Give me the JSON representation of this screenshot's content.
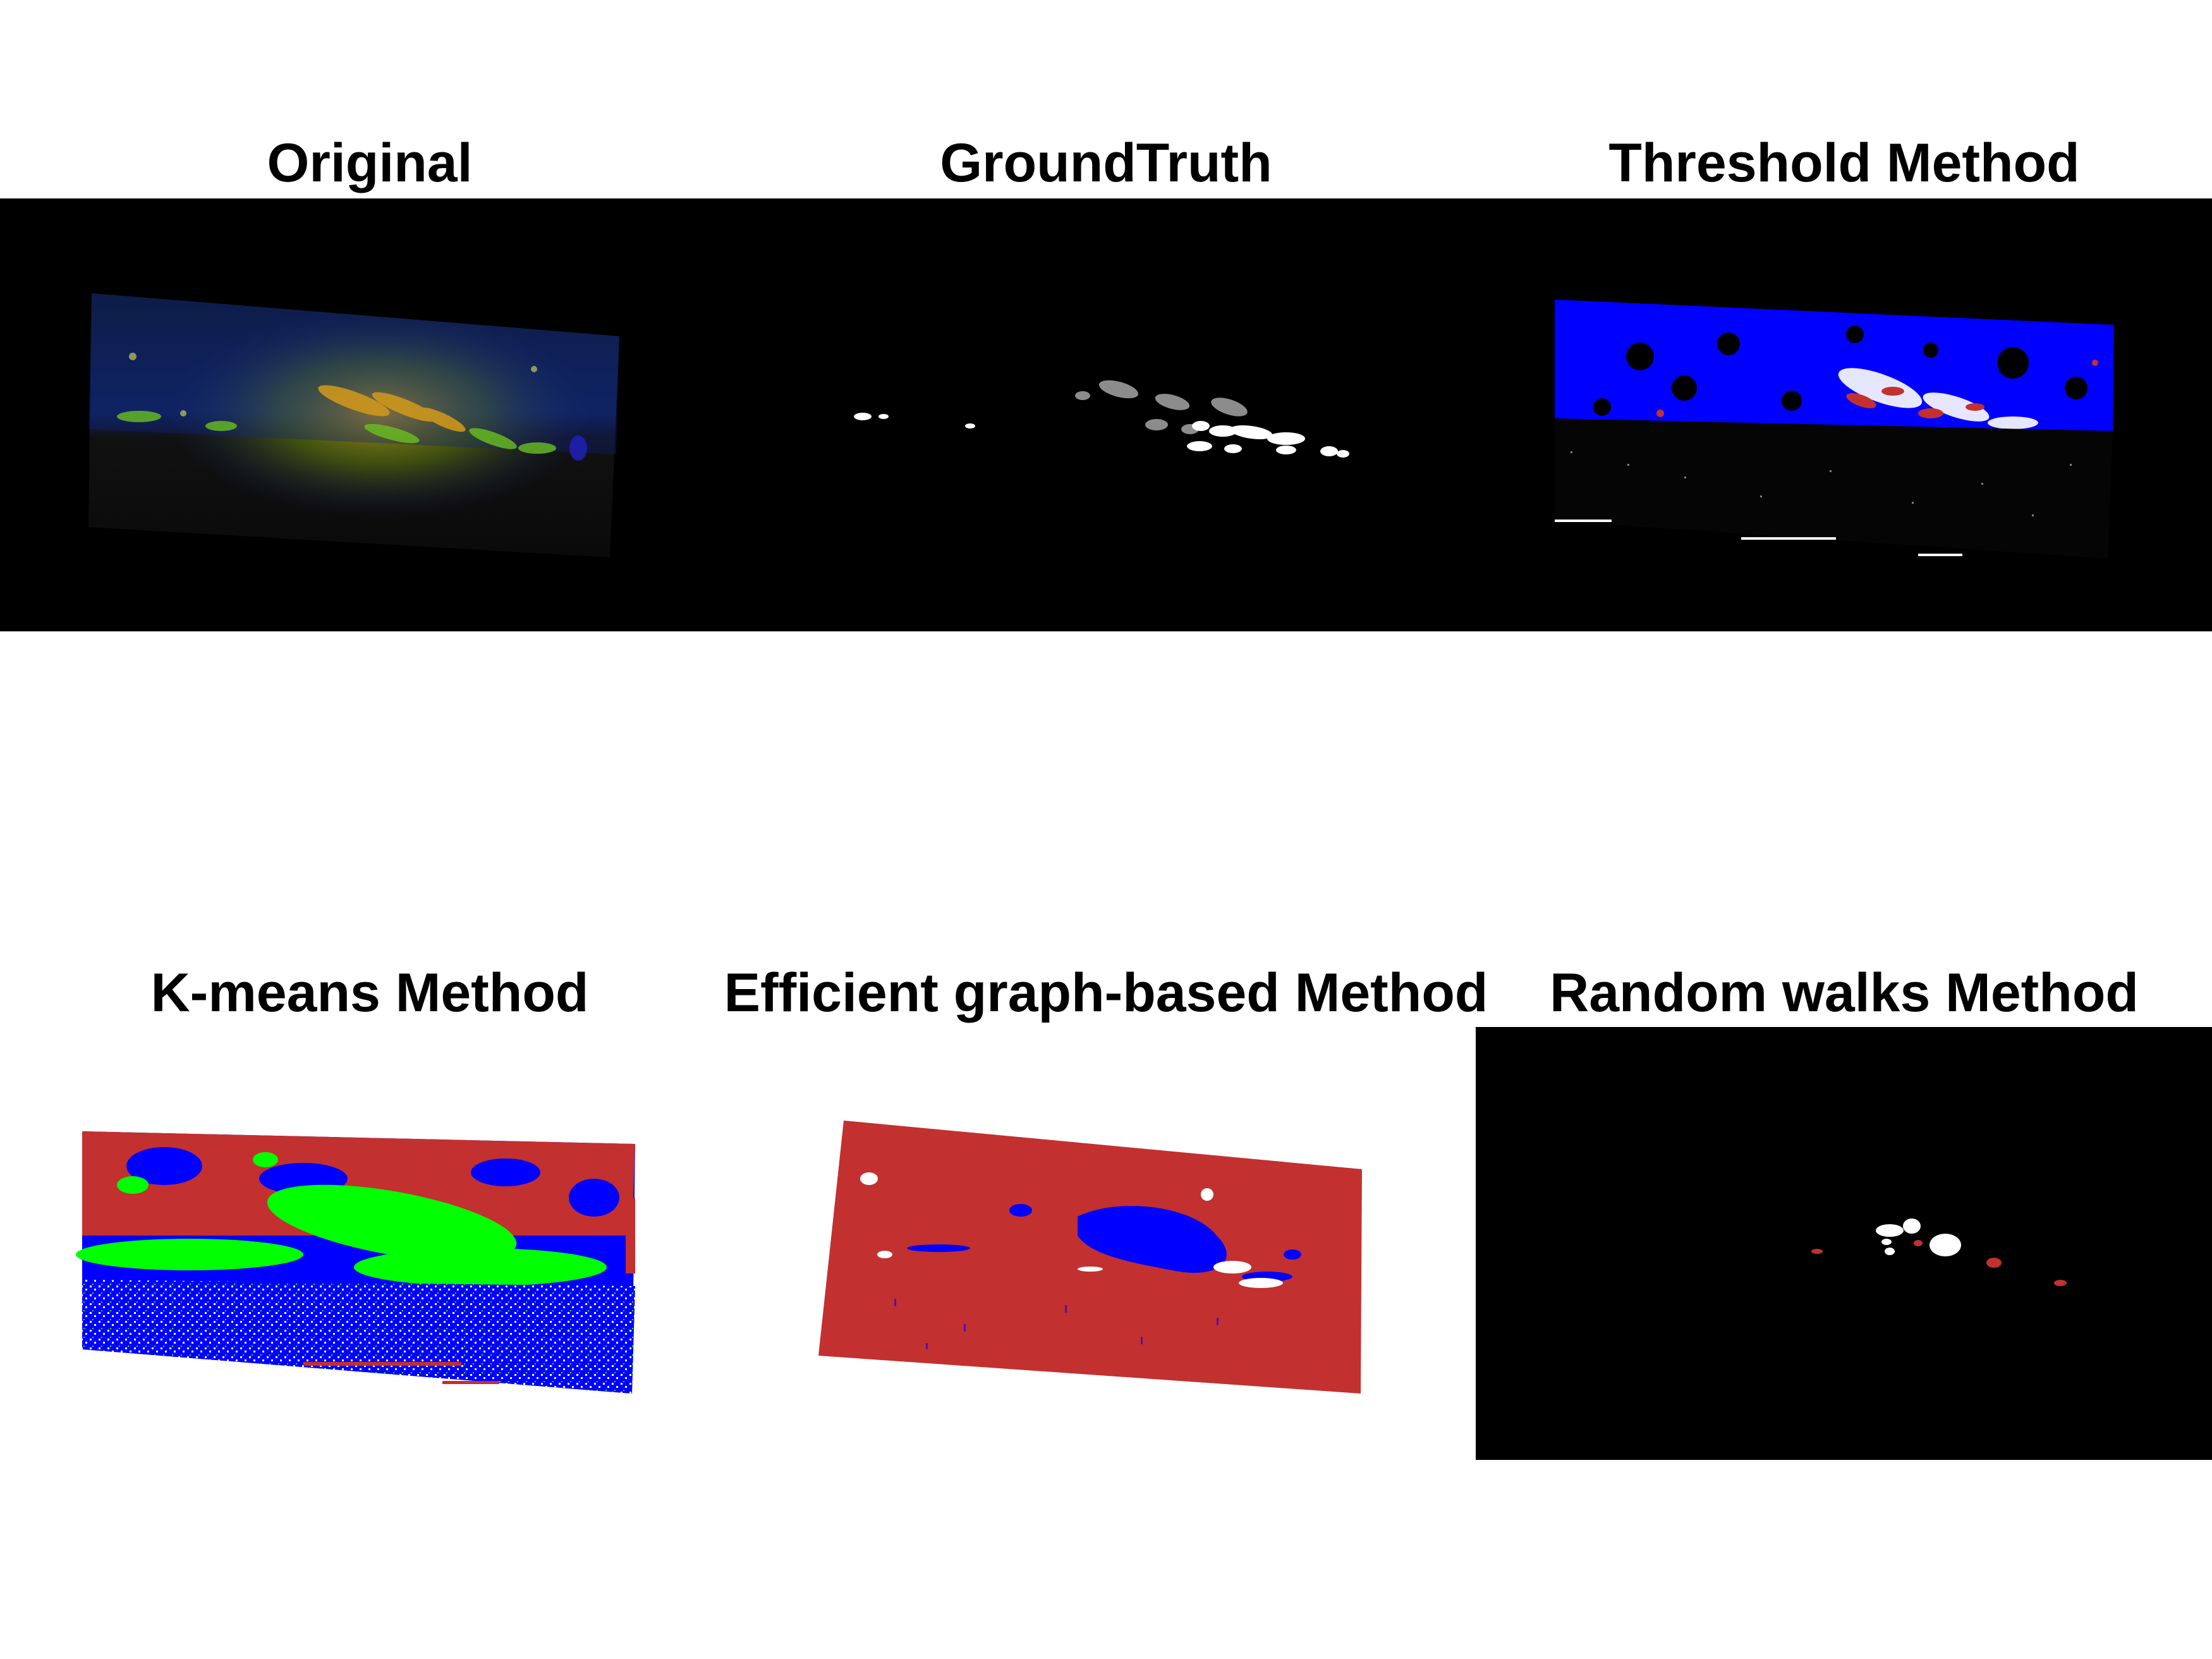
{
  "panels": [
    {
      "title": "Original"
    },
    {
      "title": "GroundTruth"
    },
    {
      "title": "Threshold Method"
    },
    {
      "title": "K-means Method"
    },
    {
      "title": "Efficient graph-based Method"
    },
    {
      "title": "Random walks Method"
    }
  ],
  "colors": {
    "background": "#000000",
    "figure": "#ffffff",
    "red": "#c33030",
    "blue": "#0000ff",
    "green": "#00ff00",
    "gray": "#8c8c8c",
    "white": "#ffffff"
  }
}
